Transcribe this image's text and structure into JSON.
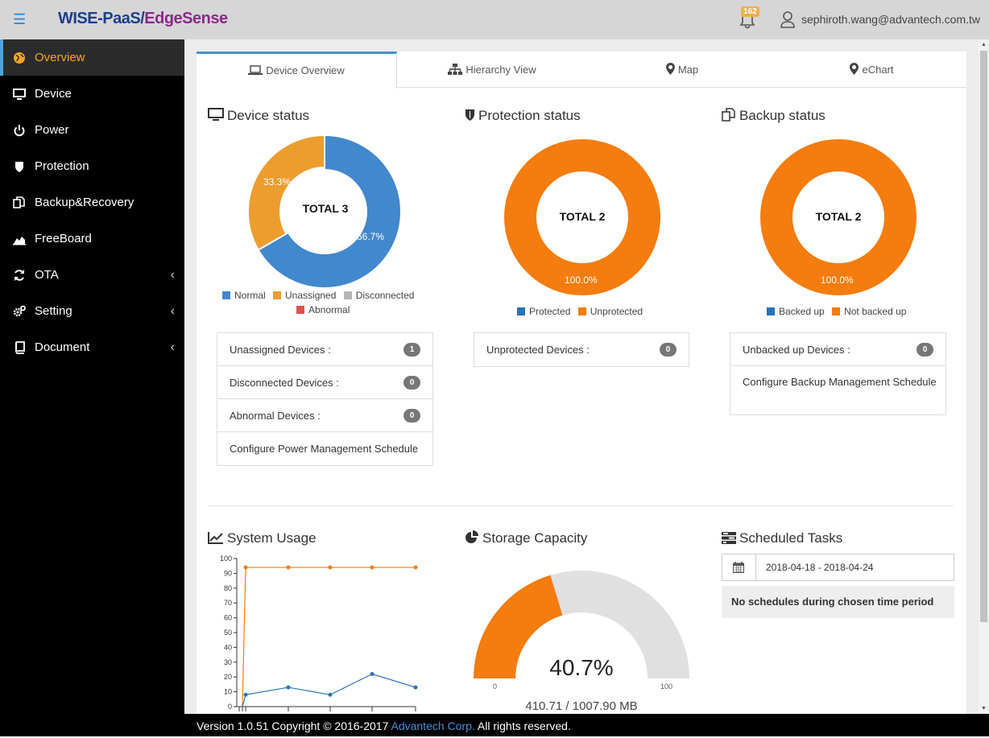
{
  "header": {
    "brand_part1": "WISE-PaaS/",
    "brand_part2": "EdgeSense",
    "notification_count": "162",
    "user_email": "sephiroth.wang@advantech.com.tw"
  },
  "sidebar": {
    "items": [
      {
        "label": "Overview",
        "icon": "globe-icon",
        "active": true
      },
      {
        "label": "Device",
        "icon": "monitor-icon"
      },
      {
        "label": "Power",
        "icon": "power-icon"
      },
      {
        "label": "Protection",
        "icon": "shield-icon"
      },
      {
        "label": "Backup&Recovery",
        "icon": "copy-icon"
      },
      {
        "label": "FreeBoard",
        "icon": "area-chart-icon"
      },
      {
        "label": "OTA",
        "icon": "refresh-icon",
        "has_children": true
      },
      {
        "label": "Setting",
        "icon": "gears-icon",
        "has_children": true
      },
      {
        "label": "Document",
        "icon": "book-icon",
        "has_children": true
      }
    ]
  },
  "tabs": [
    {
      "label": "Device Overview",
      "icon": "laptop-icon",
      "active": true
    },
    {
      "label": "Hierarchy View",
      "icon": "sitemap-icon"
    },
    {
      "label": "Map",
      "icon": "map-marker-icon"
    },
    {
      "label": "eChart",
      "icon": "map-marker-icon"
    }
  ],
  "device_status": {
    "title": "Device status",
    "total_label": "TOTAL 3",
    "slices": [
      {
        "label": "Normal",
        "percent": 66.7,
        "text": "66.7%",
        "color": "#4288cc"
      },
      {
        "label": "Unassigned",
        "percent": 33.3,
        "text": "33.3%",
        "color": "#ec9d2e"
      },
      {
        "label": "Disconnected",
        "percent": 0,
        "color": "#b5b5b5"
      },
      {
        "label": "Abnormal",
        "percent": 0,
        "color": "#d9534f"
      }
    ],
    "list": [
      {
        "label": "Unassigned Devices :",
        "count": "1"
      },
      {
        "label": "Disconnected Devices :",
        "count": "0"
      },
      {
        "label": "Abnormal Devices :",
        "count": "0"
      },
      {
        "label": "Configure Power Management Schedule"
      }
    ]
  },
  "protection_status": {
    "title": "Protection status",
    "total_label": "TOTAL 2",
    "slice_text": "100.0%",
    "legend": [
      {
        "label": "Protected",
        "color": "#2a72b8"
      },
      {
        "label": "Unprotected",
        "color": "#f57c0e"
      }
    ],
    "list": [
      {
        "label": "Unprotected Devices :",
        "count": "0"
      }
    ]
  },
  "backup_status": {
    "title": "Backup status",
    "total_label": "TOTAL 2",
    "slice_text": "100.0%",
    "legend": [
      {
        "label": "Backed up",
        "color": "#2a72b8"
      },
      {
        "label": "Not backed up",
        "color": "#f57c0e"
      }
    ],
    "list": [
      {
        "label": "Unbacked up Devices :",
        "count": "0"
      },
      {
        "label": "Configure Backup Management Schedule"
      }
    ]
  },
  "system_usage": {
    "title": "System Usage"
  },
  "chart_data": {
    "type": "line",
    "x": [
      0,
      1,
      2,
      3,
      4
    ],
    "series": [
      {
        "name": "orange",
        "color": "#f57c0e",
        "values": [
          94,
          94,
          94,
          94,
          94
        ]
      },
      {
        "name": "blue",
        "color": "#2a72b8",
        "values": [
          8,
          13,
          8,
          22,
          13
        ]
      }
    ],
    "yticks": [
      "0",
      "10",
      "20",
      "30",
      "40",
      "50",
      "60",
      "70",
      "80",
      "90",
      "100"
    ],
    "ylim": [
      0,
      100
    ]
  },
  "storage": {
    "title": "Storage Capacity",
    "percent_value": 40.7,
    "percent_text": "40.7%",
    "min_label": "0",
    "max_label": "100",
    "usage_text": "410.71 / 1007.90 MB",
    "fill_color": "#f57c0e",
    "track_color": "#e0e0e0"
  },
  "scheduled_tasks": {
    "title": "Scheduled Tasks",
    "date_range": "2018-04-18 - 2018-04-24",
    "empty_message": "No schedules during chosen time period"
  },
  "footer": {
    "prefix": "Version 1.0.51 Copyright © 2016-2017 ",
    "company": "Advantech Corp.",
    "suffix": " All rights reserved."
  }
}
